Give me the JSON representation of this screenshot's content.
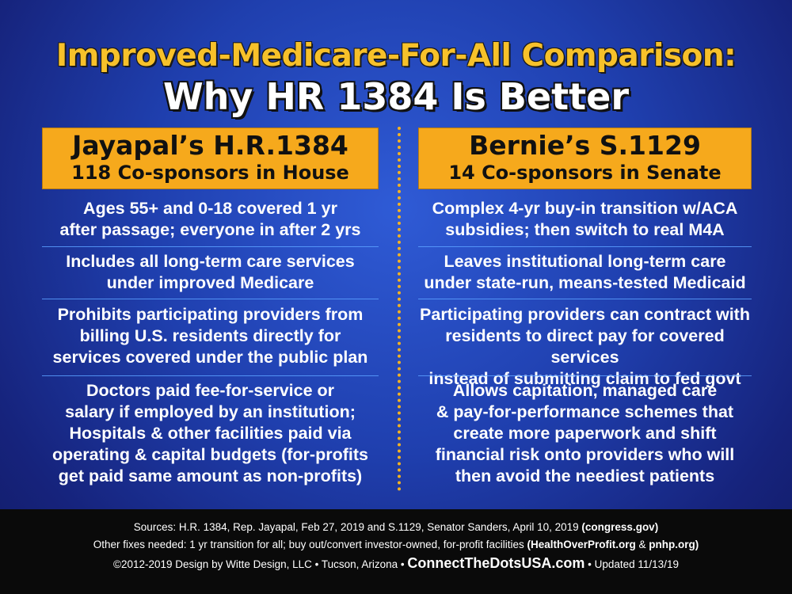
{
  "title": {
    "line1": "Improved-Medicare-For-All Comparison:",
    "line2": "Why HR 1384 Is Better"
  },
  "colors": {
    "background": "#1f3fae",
    "accent": "#f6a91c",
    "title_yellow": "#f7c12a",
    "footer_bg": "#0a0a0a"
  },
  "left": {
    "name": "Jayapal’s H.R.1384",
    "sub": "118 Co-sponsors in House",
    "rows": [
      "Ages 55+ and 0-18 covered 1 yr\nafter passage; everyone in after 2 yrs",
      "Includes all long-term care services\nunder improved Medicare",
      "Prohibits participating providers from\nbilling U.S. residents directly for\nservices covered under the public plan",
      "Doctors paid fee-for-service or\nsalary if employed by an institution;\nHospitals & other facilities paid via\noperating & capital budgets (for-profits\nget paid same amount as non-profits)"
    ]
  },
  "right": {
    "name": "Bernie’s S.1129",
    "sub": "14 Co-sponsors in Senate",
    "rows": [
      "Complex 4-yr buy-in transition w/ACA\nsubsidies; then switch to real M4A",
      "Leaves institutional long-term care\nunder state-run, means-tested Medicaid",
      "Participating providers can contract with\nresidents to direct pay for covered services\ninstead of submitting claim to fed govt",
      "Allows capitation, managed care\n& pay-for-performance schemes that\ncreate more paperwork and shift\nfinancial risk onto providers who will\nthen avoid the neediest patients"
    ]
  },
  "footer": {
    "sources_text": "Sources: H.R. 1384, Rep. Jayapal, Feb 27, 2019 and S.1129, Senator Sanders, April 10, 2019 ",
    "sources_bold": "(congress.gov)",
    "fixes_text": "Other fixes needed: 1 yr transition for all; buy out/convert investor-owned, for-profit facilities ",
    "fixes_bold": "(HealthOverProfit.org",
    "fixes_amp": " & ",
    "fixes_bold2": "pnhp.org)",
    "credit": "©2012-2019 Design by Witte Design, LLC • Tucson, Arizona • ",
    "site": "ConnectTheDotsUSA.com",
    "updated": " • Updated 11/13/19"
  }
}
